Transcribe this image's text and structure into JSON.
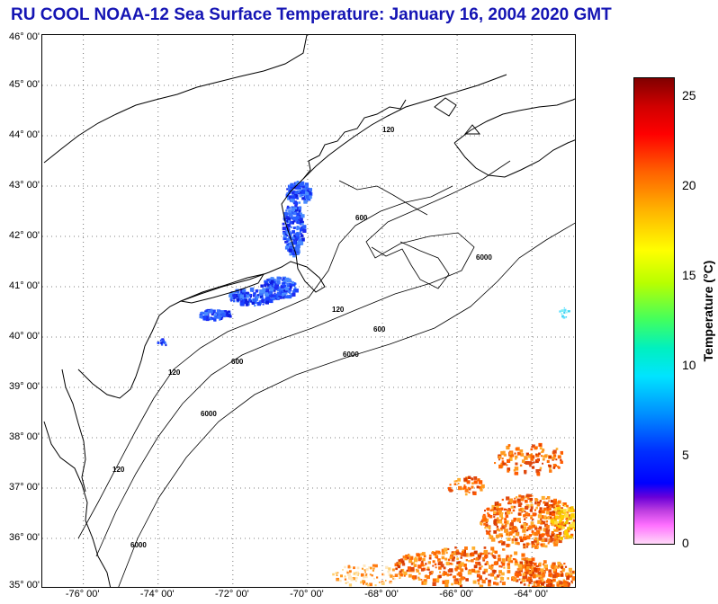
{
  "title": "RU COOL  NOAA-12  Sea Surface Temperature:  January 16, 2004 2020 GMT",
  "map": {
    "lat_min": 35,
    "lat_max": 46,
    "lon_min": -77.1,
    "lon_max": -62.8,
    "lat_labels": [
      {
        "lat": 46,
        "text": "46° 00'"
      },
      {
        "lat": 45,
        "text": "45° 00'"
      },
      {
        "lat": 44,
        "text": "44° 00'"
      },
      {
        "lat": 43,
        "text": "43° 00'"
      },
      {
        "lat": 42,
        "text": "42° 00'"
      },
      {
        "lat": 41,
        "text": "41° 00'"
      },
      {
        "lat": 40,
        "text": "40° 00'"
      },
      {
        "lat": 39,
        "text": "39° 00'"
      },
      {
        "lat": 38,
        "text": "38° 00'"
      },
      {
        "lat": 37,
        "text": "37° 00'"
      },
      {
        "lat": 36,
        "text": "36° 00'"
      },
      {
        "lat": 35,
        "text": "35° 00'"
      }
    ],
    "lon_labels": [
      {
        "lon": -76,
        "text": "-76° 00'"
      },
      {
        "lon": -74,
        "text": "-74° 00'"
      },
      {
        "lon": -72,
        "text": "-72° 00'"
      },
      {
        "lon": -70,
        "text": "-70° 00'"
      },
      {
        "lon": -68,
        "text": "-68° 00'"
      },
      {
        "lon": -66,
        "text": "-66° 00'"
      },
      {
        "lon": -64,
        "text": "-64° 00'"
      }
    ],
    "contour_labels": [
      "120",
      "600",
      "6000"
    ]
  },
  "colorbar": {
    "label": "Temperature (°C)",
    "min": 0,
    "max": 26,
    "ticks": [
      {
        "value": 0,
        "text": "0"
      },
      {
        "value": 5,
        "text": "5"
      },
      {
        "value": 10,
        "text": "10"
      },
      {
        "value": 15,
        "text": "15"
      },
      {
        "value": 20,
        "text": "20"
      },
      {
        "value": 25,
        "text": "25"
      }
    ]
  },
  "colors": {
    "title": "#1515b4",
    "grid": "#555555",
    "coast": "#000000"
  }
}
